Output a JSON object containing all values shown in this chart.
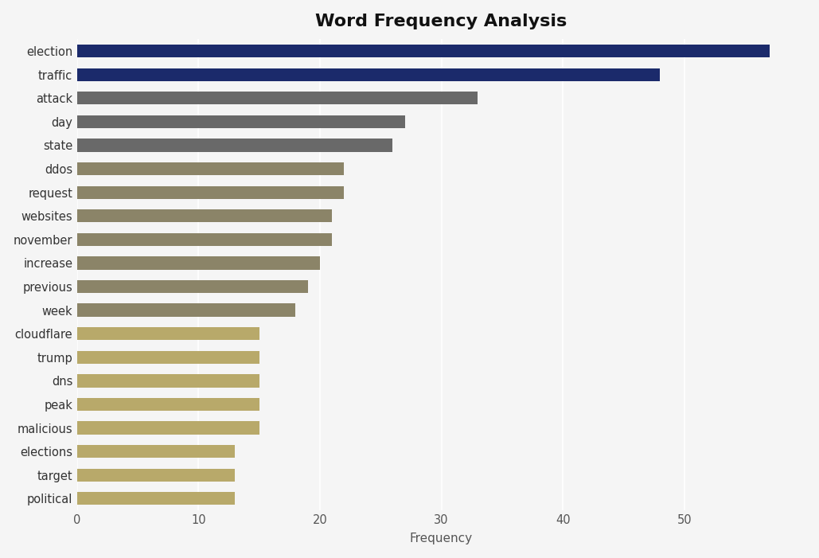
{
  "title": "Word Frequency Analysis",
  "xlabel": "Frequency",
  "categories": [
    "election",
    "traffic",
    "attack",
    "day",
    "state",
    "ddos",
    "request",
    "websites",
    "november",
    "increase",
    "previous",
    "week",
    "cloudflare",
    "trump",
    "dns",
    "peak",
    "malicious",
    "elections",
    "target",
    "political"
  ],
  "values": [
    57,
    48,
    33,
    27,
    26,
    22,
    22,
    21,
    21,
    20,
    19,
    18,
    15,
    15,
    15,
    15,
    15,
    13,
    13,
    13
  ],
  "colors": [
    "#1b2a6b",
    "#1b2a6b",
    "#696969",
    "#696969",
    "#696969",
    "#8b8468",
    "#8b8468",
    "#8b8468",
    "#8b8468",
    "#8b8468",
    "#8b8468",
    "#8b8468",
    "#b8a96a",
    "#b8a96a",
    "#b8a96a",
    "#b8a96a",
    "#b8a96a",
    "#b8a96a",
    "#b8a96a",
    "#b8a96a"
  ],
  "background_color": "#f5f5f5",
  "title_fontsize": 16,
  "xlim": [
    0,
    60
  ],
  "xticks": [
    0,
    10,
    20,
    30,
    40,
    50
  ]
}
